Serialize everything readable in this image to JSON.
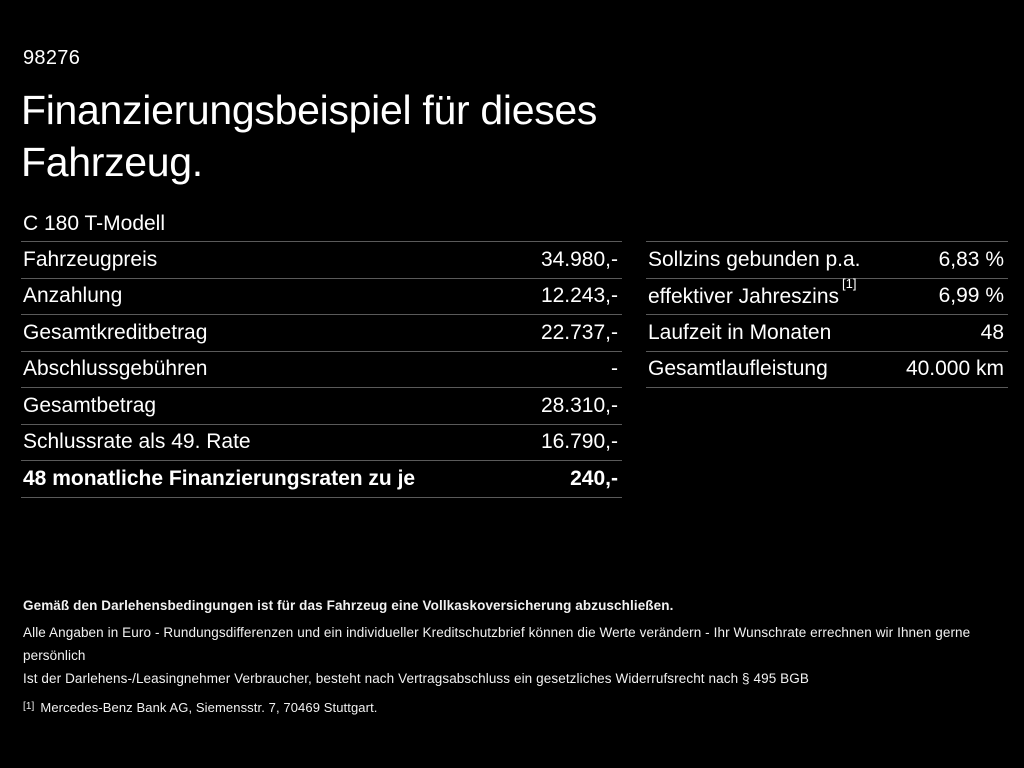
{
  "colors": {
    "background": "#000000",
    "text": "#ffffff",
    "divider": "#5a5a5a"
  },
  "header": {
    "stock_number": "98276",
    "title_line1": "Finanzierungsbeispiel für dieses",
    "title_line2": "Fahrzeug.",
    "model": "C 180 T-Modell"
  },
  "financing_table": {
    "rows": [
      {
        "label": "Fahrzeugpreis",
        "value": "34.980,-"
      },
      {
        "label": "Anzahlung",
        "value": "12.243,-"
      },
      {
        "label": "Gesamtkreditbetrag",
        "value": "22.737,-"
      },
      {
        "label": "Abschlussgebühren",
        "value": "-"
      },
      {
        "label": "Gesamtbetrag",
        "value": "28.310,-"
      },
      {
        "label": "Schlussrate als 49. Rate",
        "value": "16.790,-"
      },
      {
        "label": "48 monatliche Finanzierungsraten zu je",
        "value": "240,-"
      }
    ]
  },
  "conditions_table": {
    "rows": [
      {
        "label": "Sollzins gebunden p.a.",
        "value": "6,83 %"
      },
      {
        "label": "effektiver Jahreszins",
        "footnote_marker": "[1]",
        "value": "6,99 %"
      },
      {
        "label": "Laufzeit in Monaten",
        "value": "48"
      },
      {
        "label": "Gesamtlaufleistung",
        "value": "40.000 km"
      }
    ]
  },
  "legal": {
    "insurance_note": "Gemäß den Darlehensbedingungen ist für das Fahrzeug eine Vollkaskoversicherung abzuschließen.",
    "disclaimer_line1": "Alle Angaben in Euro - Rundungsdifferenzen und ein individueller Kreditschutzbrief können die Werte verändern - Ihr Wunschrate errechnen wir Ihnen gerne persönlich",
    "disclaimer_line2": "Ist der Darlehens-/Leasingnehmer Verbraucher, besteht nach Vertragsabschluss ein gesetzliches Widerrufsrecht nach § 495 BGB",
    "footnote_marker": "[1]",
    "footnote_text": "Mercedes-Benz Bank AG, Siemensstr. 7, 70469 Stuttgart."
  }
}
